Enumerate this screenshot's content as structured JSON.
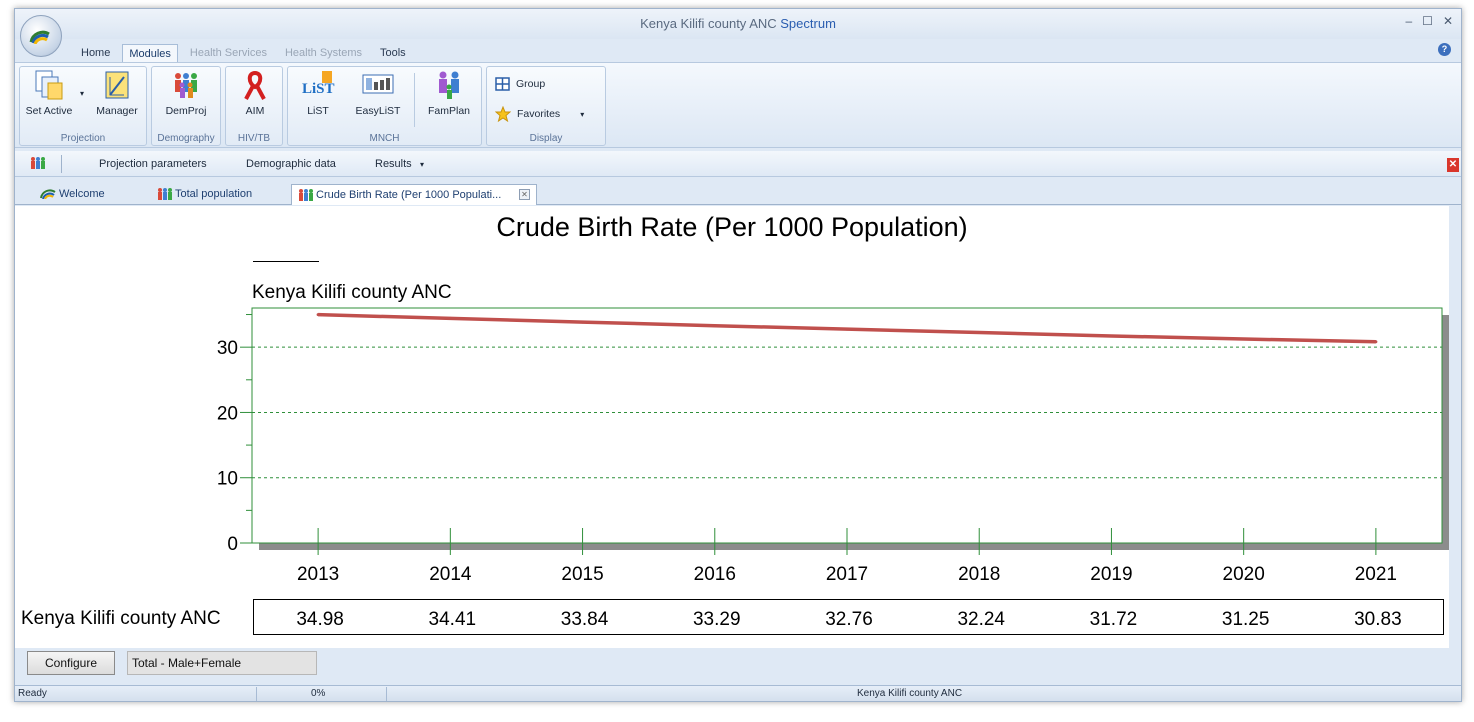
{
  "window": {
    "title_prefix": "Kenya Kilifi county ANC ",
    "title_accent": "Spectrum",
    "controls": [
      "–",
      "☐",
      "✕"
    ]
  },
  "ribbon_tabs": [
    {
      "label": "Home",
      "state": "normal"
    },
    {
      "label": "Modules",
      "state": "active"
    },
    {
      "label": "Health Services",
      "state": "disabled"
    },
    {
      "label": "Health Systems",
      "state": "disabled"
    },
    {
      "label": "Tools",
      "state": "normal"
    }
  ],
  "ribbon": {
    "projection": {
      "label": "Projection",
      "set_active": "Set Active",
      "manager": "Manager"
    },
    "demography": {
      "label": "Demography",
      "demproj": "DemProj"
    },
    "hivtb": {
      "label": "HIV/TB",
      "aim": "AIM"
    },
    "mnch": {
      "label": "MNCH",
      "list": "LiST",
      "easylist": "EasyLiST",
      "famplan": "FamPlan",
      "list_logo": "LiST"
    },
    "display": {
      "label": "Display",
      "group": "Group",
      "favorites": "Favorites"
    }
  },
  "toolbar": {
    "projection_parameters": "Projection parameters",
    "demographic_data": "Demographic data",
    "results": "Results",
    "close": "✕"
  },
  "doc_tabs": [
    {
      "label": "Welcome"
    },
    {
      "label": "Total population"
    },
    {
      "label": "Crude Birth Rate (Per 1000 Populati..."
    }
  ],
  "chart_data": {
    "type": "line",
    "title": "Crude Birth Rate (Per 1000 Population)",
    "x": [
      2013,
      2014,
      2015,
      2016,
      2017,
      2018,
      2019,
      2020,
      2021
    ],
    "series": [
      {
        "name": "Kenya Kilifi county ANC",
        "values": [
          34.98,
          34.41,
          33.84,
          33.29,
          32.76,
          32.24,
          31.72,
          31.25,
          30.83
        ],
        "color": "#c0504d"
      }
    ],
    "y_ticks": [
      0,
      10,
      20,
      30
    ],
    "ylim": [
      0,
      36
    ],
    "grid": "horizontal dashed",
    "table_values": [
      "34.98",
      "34.41",
      "33.84",
      "33.29",
      "32.76",
      "32.24",
      "31.72",
      "31.25",
      "30.83"
    ]
  },
  "bottom": {
    "configure_label": "Configure",
    "config_value": "Total - Male+Female"
  },
  "status": {
    "ready": "Ready",
    "progress": "0%",
    "projection": "Kenya Kilifi county ANC"
  }
}
